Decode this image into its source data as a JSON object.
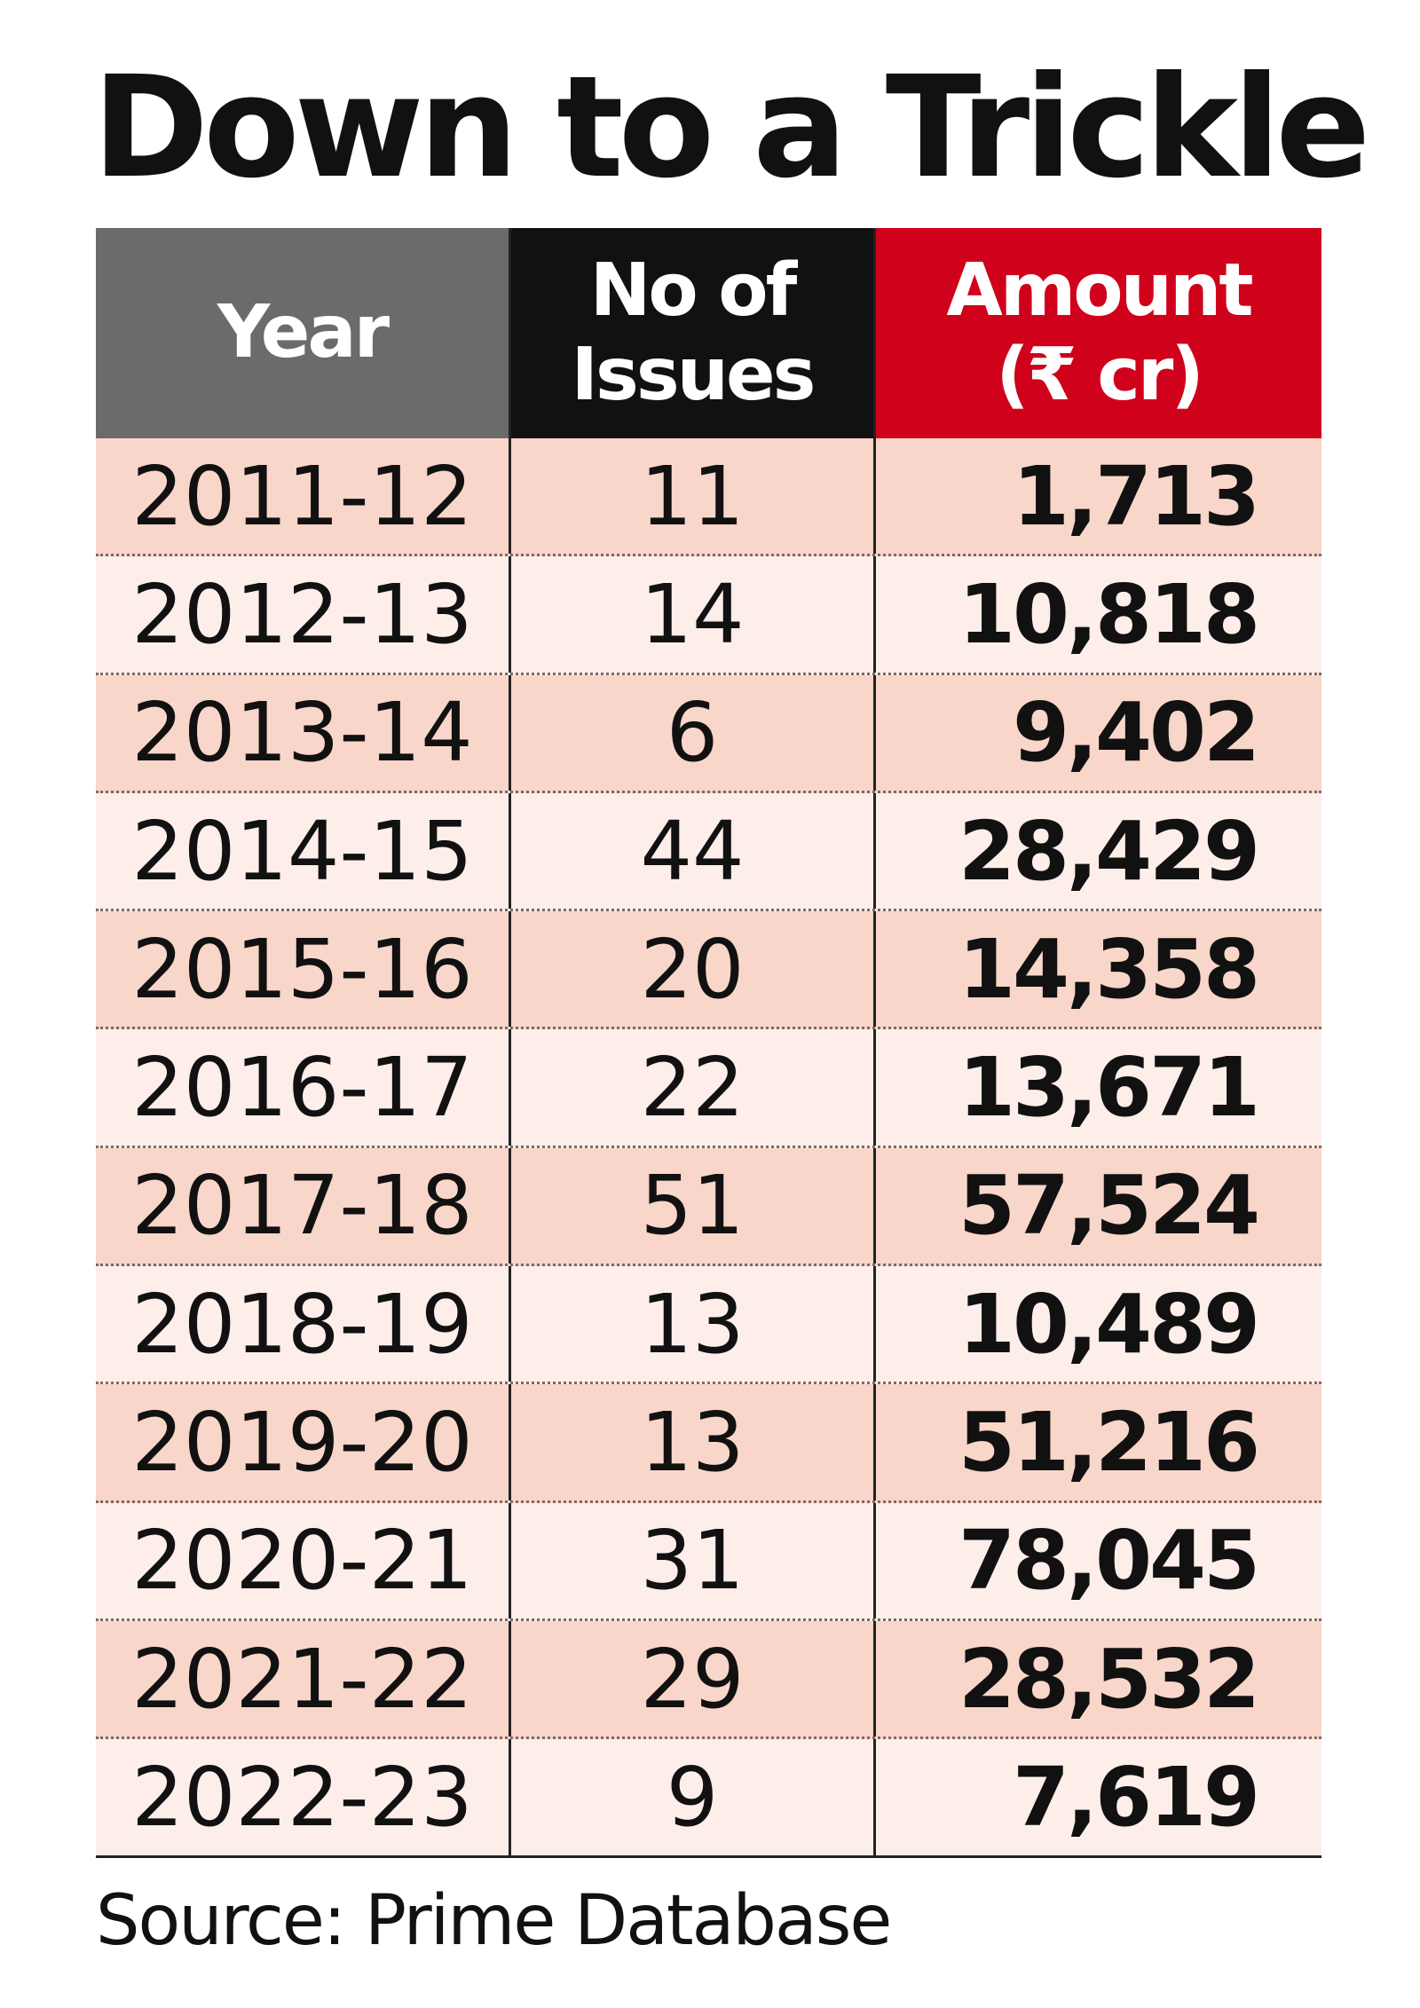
{
  "header": {
    "title": "Down to a Trickle"
  },
  "table": {
    "columns": [
      "Year",
      "No of Issues",
      "Amount (₹ cr)"
    ],
    "rows": [
      [
        "2011-12",
        "11",
        "1,713"
      ],
      [
        "2012-13",
        "14",
        "10,818"
      ],
      [
        "2013-14",
        "6",
        "9,402"
      ],
      [
        "2014-15",
        "44",
        "28,429"
      ],
      [
        "2015-16",
        "20",
        "14,358"
      ],
      [
        "2016-17",
        "22",
        "13,671"
      ],
      [
        "2017-18",
        "51",
        "57,524"
      ],
      [
        "2018-19",
        "13",
        "10,489"
      ],
      [
        "2019-20",
        "13",
        "51,216"
      ],
      [
        "2020-21",
        "31",
        "78,045"
      ],
      [
        "2021-22",
        "29",
        "28,532"
      ],
      [
        "2022-23",
        "9",
        "7,619"
      ]
    ]
  },
  "footer": {
    "source": "Source: Prime Database"
  }
}
